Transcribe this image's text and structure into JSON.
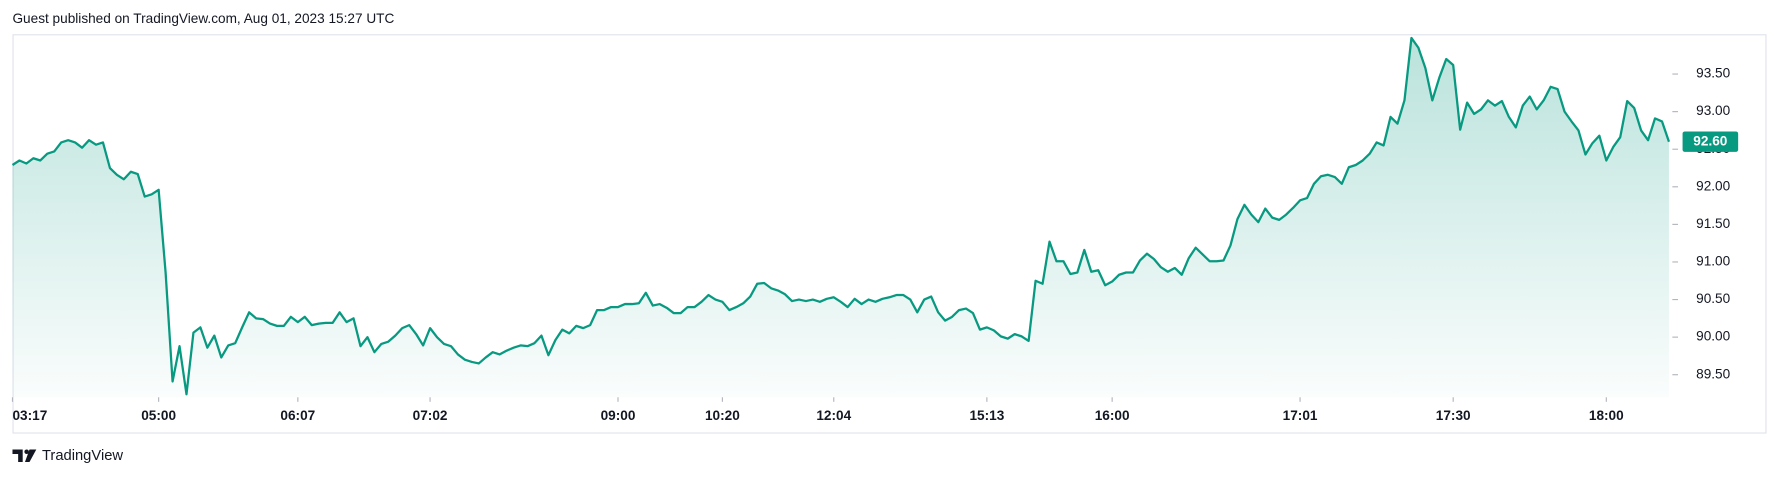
{
  "header": {
    "text": "Guest published on TradingView.com, Aug 01, 2023 15:27 UTC"
  },
  "footer": {
    "brand": "TradingView"
  },
  "chart_data": {
    "type": "area",
    "x": [
      0,
      1,
      2,
      3,
      4,
      5,
      6,
      7,
      8,
      9,
      10,
      11,
      12,
      13,
      14,
      15,
      16,
      17,
      18,
      19,
      20,
      21,
      22,
      23,
      24,
      25,
      26,
      27,
      28,
      29,
      30,
      31,
      32,
      33,
      34,
      35,
      36,
      37,
      38,
      39,
      40,
      41,
      42,
      43,
      44,
      45,
      46,
      47,
      48,
      49,
      50,
      51,
      52,
      53,
      54,
      55,
      56,
      57,
      58,
      59,
      60,
      61,
      62,
      63,
      64,
      65,
      66,
      67,
      68,
      69,
      70,
      71,
      72,
      73,
      74,
      75,
      76,
      77,
      78,
      79,
      80,
      81,
      82,
      83,
      84,
      85,
      86,
      87,
      88,
      89,
      90,
      91,
      92,
      93,
      94,
      95,
      96,
      97,
      98,
      99,
      100,
      101,
      102,
      103,
      104,
      105,
      106,
      107,
      108,
      109,
      110,
      111,
      112,
      113,
      114,
      115,
      116,
      117,
      118,
      119,
      120,
      121,
      122,
      123,
      124,
      125,
      126,
      127,
      128,
      129,
      130,
      131,
      132,
      133,
      134,
      135,
      136,
      137,
      138,
      139,
      140,
      141,
      142,
      143,
      144,
      145,
      146,
      147,
      148,
      149,
      150,
      151,
      152,
      153,
      154,
      155,
      156,
      157,
      158,
      159,
      160,
      161,
      162,
      163,
      164,
      165,
      166,
      167,
      168,
      169,
      170,
      171,
      172,
      173,
      174,
      175,
      176,
      177,
      178,
      179,
      180,
      181,
      182,
      183,
      184,
      185,
      186,
      187,
      188,
      189,
      190,
      191,
      192,
      193,
      194,
      195,
      196,
      197,
      198,
      199,
      200,
      201,
      202,
      203,
      204,
      205,
      206,
      207,
      208,
      209,
      210,
      211,
      212,
      213,
      214,
      215,
      216,
      217,
      218,
      219,
      220,
      221,
      222,
      223,
      224,
      225,
      226,
      227,
      228,
      229,
      230,
      231,
      232,
      233,
      234,
      235,
      236,
      237,
      238
    ],
    "series": [
      {
        "color": "#089981",
        "values": [
          92.29,
          92.35,
          92.31,
          92.38,
          92.35,
          92.44,
          92.47,
          92.59,
          92.62,
          92.59,
          92.52,
          92.62,
          92.56,
          92.59,
          92.25,
          92.16,
          92.1,
          92.2,
          92.17,
          91.87,
          91.9,
          91.96,
          90.86,
          89.41,
          89.88,
          89.24,
          90.06,
          90.13,
          89.86,
          90.02,
          89.73,
          89.89,
          89.92,
          90.13,
          90.33,
          90.25,
          90.24,
          90.18,
          90.15,
          90.15,
          90.27,
          90.2,
          90.27,
          90.16,
          90.18,
          90.19,
          90.19,
          90.33,
          90.2,
          90.25,
          89.88,
          90.0,
          89.8,
          89.91,
          89.94,
          90.02,
          90.12,
          90.16,
          90.04,
          89.89,
          90.12,
          90.0,
          89.91,
          89.88,
          89.77,
          89.7,
          89.67,
          89.65,
          89.73,
          89.8,
          89.77,
          89.82,
          89.86,
          89.89,
          89.88,
          89.92,
          90.02,
          89.76,
          89.96,
          90.1,
          90.05,
          90.15,
          90.12,
          90.16,
          90.36,
          90.36,
          90.4,
          90.4,
          90.44,
          90.44,
          90.45,
          90.59,
          90.42,
          90.44,
          90.39,
          90.32,
          90.32,
          90.4,
          90.4,
          90.47,
          90.56,
          90.5,
          90.47,
          90.36,
          90.4,
          90.45,
          90.54,
          90.71,
          90.72,
          90.65,
          90.62,
          90.57,
          90.48,
          90.5,
          90.48,
          90.5,
          90.47,
          90.51,
          90.53,
          90.47,
          90.4,
          90.51,
          90.44,
          90.5,
          90.47,
          90.51,
          90.53,
          90.56,
          90.56,
          90.5,
          90.33,
          90.5,
          90.54,
          90.33,
          90.22,
          90.27,
          90.36,
          90.38,
          90.32,
          90.1,
          90.13,
          90.09,
          90.01,
          89.98,
          90.04,
          90.01,
          89.95,
          90.75,
          90.71,
          91.27,
          91.01,
          91.01,
          90.84,
          90.86,
          91.16,
          90.87,
          90.89,
          90.69,
          90.74,
          90.83,
          90.86,
          90.86,
          91.02,
          91.11,
          91.04,
          90.93,
          90.87,
          90.92,
          90.83,
          91.05,
          91.19,
          91.1,
          91.01,
          91.01,
          91.02,
          91.22,
          91.57,
          91.76,
          91.63,
          91.53,
          91.71,
          91.59,
          91.56,
          91.63,
          91.72,
          91.82,
          91.85,
          92.04,
          92.14,
          92.16,
          92.13,
          92.04,
          92.26,
          92.29,
          92.35,
          92.44,
          92.59,
          92.55,
          92.93,
          92.84,
          93.15,
          93.98,
          93.85,
          93.58,
          93.15,
          93.45,
          93.7,
          93.62,
          92.76,
          93.12,
          92.97,
          93.03,
          93.15,
          93.08,
          93.14,
          92.93,
          92.79,
          93.08,
          93.2,
          93.03,
          93.15,
          93.33,
          93.3,
          93.0,
          92.87,
          92.75,
          92.43,
          92.58,
          92.68,
          92.35,
          92.53,
          92.66,
          93.14,
          93.05,
          92.75,
          92.62,
          92.91,
          92.87,
          92.6
        ]
      }
    ],
    "last_label": "92.60",
    "xlim": [
      0,
      238
    ],
    "xticks": [
      {
        "value": 0,
        "label": "03:17"
      },
      {
        "value": 21,
        "label": "05:00"
      },
      {
        "value": 41,
        "label": "06:07"
      },
      {
        "value": 60,
        "label": "07:02"
      },
      {
        "value": 87,
        "label": "09:00"
      },
      {
        "value": 102,
        "label": "10:20"
      },
      {
        "value": 118,
        "label": "12:04"
      },
      {
        "value": 140,
        "label": "15:13"
      },
      {
        "value": 158,
        "label": "16:00"
      },
      {
        "value": 185,
        "label": "17:01"
      },
      {
        "value": 207,
        "label": "17:30"
      },
      {
        "value": 229,
        "label": "18:00"
      }
    ],
    "ylim": [
      89.2,
      94.03
    ],
    "yticks": [
      {
        "value": 89.5,
        "label": "89.50"
      },
      {
        "value": 90,
        "label": "90.00"
      },
      {
        "value": 90.5,
        "label": "90.50"
      },
      {
        "value": 91,
        "label": "91.00"
      },
      {
        "value": 91.5,
        "label": "91.50"
      },
      {
        "value": 92,
        "label": "92.00"
      },
      {
        "value": 92.5,
        "label": "92.50"
      },
      {
        "value": 93,
        "label": "93.00"
      },
      {
        "value": 93.5,
        "label": "93.50"
      }
    ],
    "grid": false
  }
}
